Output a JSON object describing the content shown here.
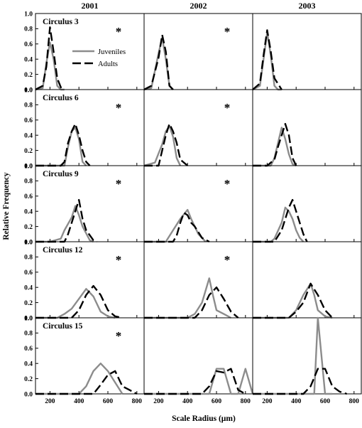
{
  "chart_data": {
    "type": "line",
    "xlabel": "Scale Radius (µm)",
    "ylabel": "Relative Frequency",
    "columns": [
      "2001",
      "2002",
      "2003"
    ],
    "rows": [
      "Circulus 3",
      "Circulus 6",
      "Circulus 9",
      "Circulus 12",
      "Circulus 15"
    ],
    "xlim": [
      100,
      850
    ],
    "ylim": [
      0,
      1.0
    ],
    "x_ticks": [
      200,
      400,
      600,
      800
    ],
    "y_ticks": [
      "0.0",
      "0.2",
      "0.4",
      "0.6",
      "0.8",
      "1.0"
    ],
    "legend": {
      "location": "top-left-panel",
      "entries": [
        "Juveniles",
        "Adults"
      ]
    },
    "significance_mark": "*",
    "series_styles": {
      "Juveniles": {
        "color": "#8c8c8c",
        "dash": "solid"
      },
      "Adults": {
        "color": "#000000",
        "dash": "dashed"
      }
    },
    "panels": [
      [
        {
          "star": true,
          "juveniles": [
            [
              100,
              0
            ],
            [
              150,
              0.02
            ],
            [
              175,
              0.35
            ],
            [
              200,
              0.62
            ],
            [
              225,
              0.4
            ],
            [
              250,
              0.05
            ],
            [
              275,
              0
            ],
            [
              300,
              0
            ]
          ],
          "adults": [
            [
              100,
              0
            ],
            [
              150,
              0.05
            ],
            [
              175,
              0.3
            ],
            [
              200,
              0.82
            ],
            [
              225,
              0.5
            ],
            [
              250,
              0.15
            ],
            [
              275,
              0.03
            ],
            [
              300,
              0
            ]
          ]
        },
        {
          "star": true,
          "juveniles": [
            [
              100,
              0
            ],
            [
              150,
              0.02
            ],
            [
              200,
              0.48
            ],
            [
              225,
              0.68
            ],
            [
              250,
              0.4
            ],
            [
              275,
              0.05
            ],
            [
              300,
              0
            ]
          ],
          "adults": [
            [
              100,
              0
            ],
            [
              150,
              0.05
            ],
            [
              200,
              0.42
            ],
            [
              225,
              0.72
            ],
            [
              250,
              0.5
            ],
            [
              275,
              0.05
            ],
            [
              300,
              0
            ]
          ]
        },
        {
          "star": false,
          "juveniles": [
            [
              100,
              0
            ],
            [
              150,
              0.05
            ],
            [
              175,
              0.4
            ],
            [
              200,
              0.75
            ],
            [
              225,
              0.45
            ],
            [
              250,
              0.05
            ],
            [
              275,
              0
            ],
            [
              300,
              0
            ]
          ],
          "adults": [
            [
              100,
              0
            ],
            [
              150,
              0.08
            ],
            [
              175,
              0.45
            ],
            [
              200,
              0.78
            ],
            [
              225,
              0.5
            ],
            [
              250,
              0.15
            ],
            [
              300,
              0
            ]
          ]
        }
      ],
      [
        {
          "star": true,
          "juveniles": [
            [
              100,
              0
            ],
            [
              300,
              0
            ],
            [
              325,
              0.25
            ],
            [
              350,
              0.45
            ],
            [
              375,
              0.5
            ],
            [
              400,
              0.35
            ],
            [
              425,
              0.05
            ],
            [
              450,
              0
            ]
          ],
          "adults": [
            [
              100,
              0
            ],
            [
              275,
              0
            ],
            [
              300,
              0.05
            ],
            [
              325,
              0.3
            ],
            [
              350,
              0.45
            ],
            [
              375,
              0.55
            ],
            [
              400,
              0.4
            ],
            [
              425,
              0.2
            ],
            [
              450,
              0.05
            ],
            [
              475,
              0
            ]
          ]
        },
        {
          "star": true,
          "juveniles": [
            [
              100,
              0
            ],
            [
              175,
              0.04
            ],
            [
              225,
              0.28
            ],
            [
              250,
              0.45
            ],
            [
              275,
              0.52
            ],
            [
              300,
              0.38
            ],
            [
              325,
              0.1
            ],
            [
              350,
              0
            ]
          ],
          "adults": [
            [
              100,
              0
            ],
            [
              200,
              0
            ],
            [
              250,
              0.4
            ],
            [
              275,
              0.55
            ],
            [
              300,
              0.45
            ],
            [
              325,
              0.3
            ],
            [
              350,
              0.08
            ],
            [
              400,
              0
            ]
          ]
        },
        {
          "star": false,
          "juveniles": [
            [
              100,
              0
            ],
            [
              225,
              0
            ],
            [
              250,
              0.1
            ],
            [
              275,
              0.3
            ],
            [
              300,
              0.5
            ],
            [
              325,
              0.35
            ],
            [
              350,
              0.15
            ],
            [
              375,
              0.02
            ],
            [
              400,
              0
            ]
          ],
          "adults": [
            [
              100,
              0
            ],
            [
              200,
              0
            ],
            [
              250,
              0.08
            ],
            [
              275,
              0.25
            ],
            [
              300,
              0.4
            ],
            [
              325,
              0.55
            ],
            [
              350,
              0.4
            ],
            [
              375,
              0.1
            ],
            [
              400,
              0
            ]
          ]
        }
      ],
      [
        {
          "star": true,
          "juveniles": [
            [
              100,
              0
            ],
            [
              200,
              0
            ],
            [
              275,
              0.04
            ],
            [
              300,
              0.15
            ],
            [
              350,
              0.32
            ],
            [
              375,
              0.47
            ],
            [
              400,
              0.35
            ],
            [
              425,
              0.2
            ],
            [
              475,
              0.02
            ],
            [
              500,
              0
            ]
          ],
          "adults": [
            [
              100,
              0
            ],
            [
              300,
              0
            ],
            [
              325,
              0.1
            ],
            [
              350,
              0.25
            ],
            [
              375,
              0.4
            ],
            [
              400,
              0.55
            ],
            [
              425,
              0.3
            ],
            [
              450,
              0.15
            ],
            [
              500,
              0.02
            ],
            [
              525,
              0
            ]
          ]
        },
        {
          "star": true,
          "juveniles": [
            [
              100,
              0
            ],
            [
              250,
              0
            ],
            [
              300,
              0.15
            ],
            [
              350,
              0.3
            ],
            [
              400,
              0.42
            ],
            [
              425,
              0.3
            ],
            [
              450,
              0.2
            ],
            [
              475,
              0.1
            ],
            [
              525,
              0
            ]
          ],
          "adults": [
            [
              100,
              0
            ],
            [
              300,
              0
            ],
            [
              325,
              0.08
            ],
            [
              350,
              0.25
            ],
            [
              375,
              0.38
            ],
            [
              400,
              0.35
            ],
            [
              425,
              0.25
            ],
            [
              450,
              0.2
            ],
            [
              500,
              0.05
            ],
            [
              550,
              0
            ]
          ]
        },
        {
          "star": false,
          "juveniles": [
            [
              100,
              0
            ],
            [
              225,
              0
            ],
            [
              250,
              0.04
            ],
            [
              300,
              0.25
            ],
            [
              325,
              0.45
            ],
            [
              350,
              0.4
            ],
            [
              375,
              0.3
            ],
            [
              400,
              0.15
            ],
            [
              425,
              0.05
            ],
            [
              450,
              0
            ]
          ],
          "adults": [
            [
              100,
              0
            ],
            [
              250,
              0
            ],
            [
              300,
              0.15
            ],
            [
              325,
              0.3
            ],
            [
              350,
              0.45
            ],
            [
              375,
              0.55
            ],
            [
              400,
              0.4
            ],
            [
              425,
              0.25
            ],
            [
              450,
              0.1
            ],
            [
              475,
              0
            ]
          ]
        }
      ],
      [
        {
          "star": true,
          "juveniles": [
            [
              100,
              0
            ],
            [
              250,
              0
            ],
            [
              300,
              0.05
            ],
            [
              350,
              0.12
            ],
            [
              400,
              0.25
            ],
            [
              450,
              0.38
            ],
            [
              500,
              0.28
            ],
            [
              550,
              0.08
            ],
            [
              600,
              0.02
            ],
            [
              650,
              0
            ]
          ],
          "adults": [
            [
              100,
              0
            ],
            [
              350,
              0
            ],
            [
              400,
              0.1
            ],
            [
              450,
              0.3
            ],
            [
              500,
              0.42
            ],
            [
              550,
              0.3
            ],
            [
              600,
              0.1
            ],
            [
              650,
              0.02
            ],
            [
              700,
              0
            ]
          ]
        },
        {
          "star": true,
          "juveniles": [
            [
              100,
              0
            ],
            [
              400,
              0
            ],
            [
              450,
              0.05
            ],
            [
              500,
              0.2
            ],
            [
              550,
              0.52
            ],
            [
              575,
              0.3
            ],
            [
              600,
              0.1
            ],
            [
              650,
              0.05
            ],
            [
              700,
              0
            ]
          ],
          "adults": [
            [
              100,
              0
            ],
            [
              450,
              0
            ],
            [
              500,
              0.1
            ],
            [
              550,
              0.3
            ],
            [
              600,
              0.4
            ],
            [
              650,
              0.25
            ],
            [
              700,
              0.08
            ],
            [
              750,
              0
            ]
          ]
        },
        {
          "star": false,
          "juveniles": [
            [
              100,
              0
            ],
            [
              350,
              0
            ],
            [
              400,
              0.1
            ],
            [
              450,
              0.3
            ],
            [
              500,
              0.45
            ],
            [
              525,
              0.3
            ],
            [
              550,
              0.1
            ],
            [
              600,
              0.02
            ],
            [
              650,
              0
            ]
          ],
          "adults": [
            [
              100,
              0
            ],
            [
              350,
              0
            ],
            [
              400,
              0.08
            ],
            [
              450,
              0.2
            ],
            [
              500,
              0.45
            ],
            [
              550,
              0.3
            ],
            [
              600,
              0.1
            ],
            [
              650,
              0
            ]
          ]
        }
      ],
      [
        {
          "star": true,
          "juveniles": [
            [
              100,
              0
            ],
            [
              400,
              0
            ],
            [
              450,
              0.1
            ],
            [
              500,
              0.3
            ],
            [
              550,
              0.4
            ],
            [
              600,
              0.3
            ],
            [
              650,
              0.15
            ],
            [
              700,
              0
            ]
          ],
          "adults": [
            [
              100,
              0
            ],
            [
              500,
              0
            ],
            [
              550,
              0.12
            ],
            [
              600,
              0.25
            ],
            [
              650,
              0.3
            ],
            [
              700,
              0.1
            ],
            [
              750,
              0.05
            ],
            [
              800,
              0
            ]
          ]
        },
        {
          "star": false,
          "juveniles": [
            [
              100,
              0
            ],
            [
              550,
              0
            ],
            [
              600,
              0.33
            ],
            [
              650,
              0.33
            ],
            [
              700,
              0
            ],
            [
              750,
              0
            ],
            [
              800,
              0.33
            ],
            [
              850,
              0
            ]
          ],
          "adults": [
            [
              100,
              0
            ],
            [
              500,
              0
            ],
            [
              550,
              0.1
            ],
            [
              600,
              0.3
            ],
            [
              650,
              0.28
            ],
            [
              700,
              0.33
            ],
            [
              750,
              0.05
            ],
            [
              800,
              0
            ]
          ]
        },
        {
          "star": false,
          "juveniles": [
            [
              100,
              0
            ],
            [
              525,
              0
            ],
            [
              550,
              1.0
            ],
            [
              600,
              0
            ],
            [
              650,
              0
            ]
          ],
          "adults": [
            [
              100,
              0
            ],
            [
              450,
              0
            ],
            [
              500,
              0.1
            ],
            [
              550,
              0.33
            ],
            [
              600,
              0.33
            ],
            [
              650,
              0.1
            ],
            [
              700,
              0.03
            ],
            [
              750,
              0
            ]
          ]
        }
      ]
    ]
  }
}
